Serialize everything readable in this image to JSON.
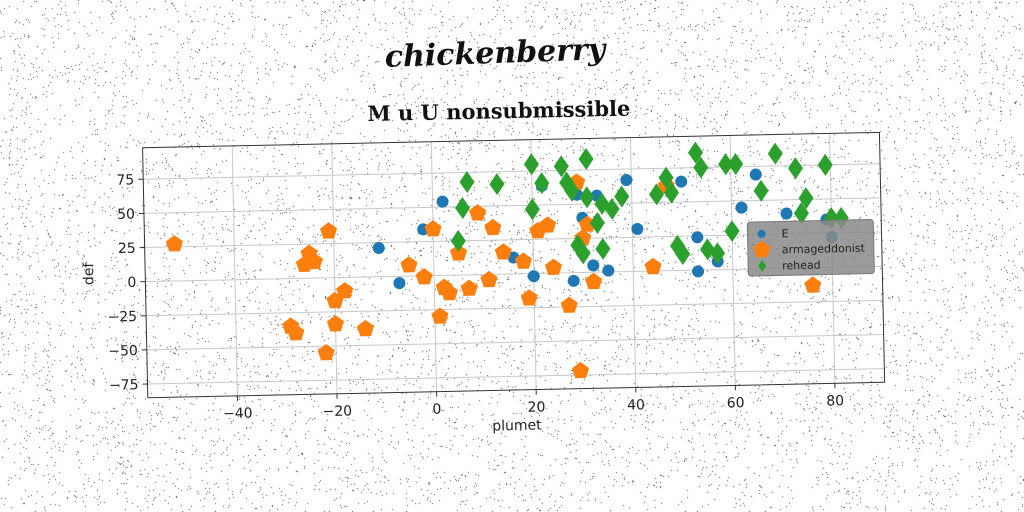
{
  "brand_text": "chickenberry",
  "chart_data": {
    "type": "scatter",
    "title": "M u U nonsubmissible",
    "xlabel": "plumet",
    "ylabel": "def",
    "xlim": [
      -58,
      90
    ],
    "ylim": [
      -85,
      98
    ],
    "xticks": [
      -40,
      -20,
      0,
      20,
      40,
      60,
      80
    ],
    "yticks": [
      -75,
      -50,
      -25,
      0,
      25,
      50,
      75
    ],
    "grid": true,
    "legend_position": "right",
    "series": [
      {
        "name": "E",
        "color": "#1f77b4",
        "marker": "circle",
        "points": [
          [
            -11,
            21
          ],
          [
            -7,
            -5
          ],
          [
            -2,
            34
          ],
          [
            2,
            54
          ],
          [
            16,
            12
          ],
          [
            20,
            -2
          ],
          [
            22,
            64
          ],
          [
            28,
            -6
          ],
          [
            29,
            57
          ],
          [
            30,
            40
          ],
          [
            32,
            5
          ],
          [
            33,
            56
          ],
          [
            35,
            1
          ],
          [
            39,
            67
          ],
          [
            41,
            31
          ],
          [
            50,
            65
          ],
          [
            53,
            24
          ],
          [
            53,
            -1
          ],
          [
            57,
            6
          ],
          [
            62,
            45
          ],
          [
            65,
            69
          ],
          [
            71,
            40
          ],
          [
            79,
            35
          ],
          [
            80,
            22
          ]
        ]
      },
      {
        "name": "armageddonist",
        "color": "#ff7f0e",
        "marker": "pentagon",
        "points": [
          [
            -52,
            27
          ],
          [
            -29,
            -35
          ],
          [
            -28,
            -40
          ],
          [
            -26,
            10
          ],
          [
            -25,
            18
          ],
          [
            -24,
            12
          ],
          [
            -22,
            -55
          ],
          [
            -21,
            34
          ],
          [
            -20,
            -17
          ],
          [
            -20,
            -34
          ],
          [
            -18,
            -10
          ],
          [
            -14,
            -38
          ],
          [
            -5,
            8
          ],
          [
            -2,
            -1
          ],
          [
            0,
            34
          ],
          [
            1,
            -30
          ],
          [
            2,
            -9
          ],
          [
            3,
            -13
          ],
          [
            5,
            16
          ],
          [
            7,
            -10
          ],
          [
            9,
            45
          ],
          [
            11,
            -4
          ],
          [
            12,
            34
          ],
          [
            14,
            16
          ],
          [
            18,
            9
          ],
          [
            19,
            -18
          ],
          [
            21,
            31
          ],
          [
            23,
            35
          ],
          [
            24,
            4
          ],
          [
            27,
            -24
          ],
          [
            29,
            66
          ],
          [
            29,
            -72
          ],
          [
            30,
            25
          ],
          [
            31,
            35
          ],
          [
            32,
            -7
          ],
          [
            44,
            3
          ],
          [
            47,
            62
          ],
          [
            76,
            -13
          ]
        ]
      },
      {
        "name": "rehead",
        "color": "#2ca02c",
        "marker": "diamond",
        "points": [
          [
            5,
            25
          ],
          [
            6,
            49
          ],
          [
            7,
            68
          ],
          [
            13,
            66
          ],
          [
            20,
            80
          ],
          [
            20,
            47
          ],
          [
            22,
            66
          ],
          [
            26,
            78
          ],
          [
            27,
            66
          ],
          [
            28,
            60
          ],
          [
            29,
            20
          ],
          [
            30,
            14
          ],
          [
            31,
            83
          ],
          [
            31,
            55
          ],
          [
            33,
            36
          ],
          [
            34,
            17
          ],
          [
            34,
            50
          ],
          [
            36,
            46
          ],
          [
            38,
            55
          ],
          [
            45,
            56
          ],
          [
            47,
            68
          ],
          [
            48,
            57
          ],
          [
            49,
            18
          ],
          [
            50,
            12
          ],
          [
            53,
            86
          ],
          [
            54,
            75
          ],
          [
            55,
            15
          ],
          [
            57,
            12
          ],
          [
            59,
            77
          ],
          [
            60,
            28
          ],
          [
            61,
            77
          ],
          [
            66,
            57
          ],
          [
            69,
            84
          ],
          [
            73,
            73
          ],
          [
            74,
            40
          ],
          [
            75,
            51
          ],
          [
            79,
            75
          ],
          [
            80,
            36
          ],
          [
            82,
            36
          ]
        ]
      }
    ]
  }
}
